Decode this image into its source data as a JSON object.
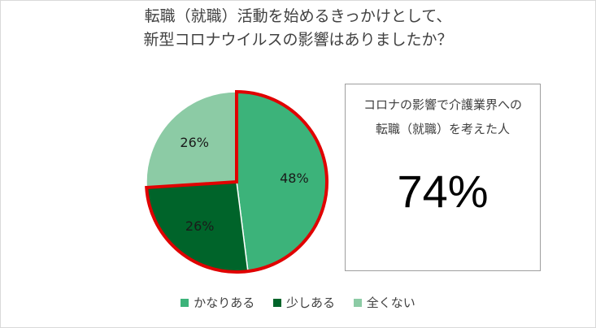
{
  "title_lines": [
    "転職（就職）活動を始めるきっかけとして、",
    "新型コロナウイルスの影響はありましたか？"
  ],
  "chart_data": {
    "type": "pie",
    "categories": [
      "かなりある",
      "少しある",
      "全くない"
    ],
    "values": [
      48,
      26,
      26
    ],
    "labels": [
      "48%",
      "26%",
      "26%"
    ],
    "colors": [
      "#3cb37a",
      "#00642a",
      "#8ccba5"
    ],
    "highlight_color": "#e00000",
    "legend_position": "bottom"
  },
  "callout": {
    "lines": [
      "コロナの影響で介護業界への",
      "転職（就職）を考えた人"
    ],
    "value": "74%"
  }
}
